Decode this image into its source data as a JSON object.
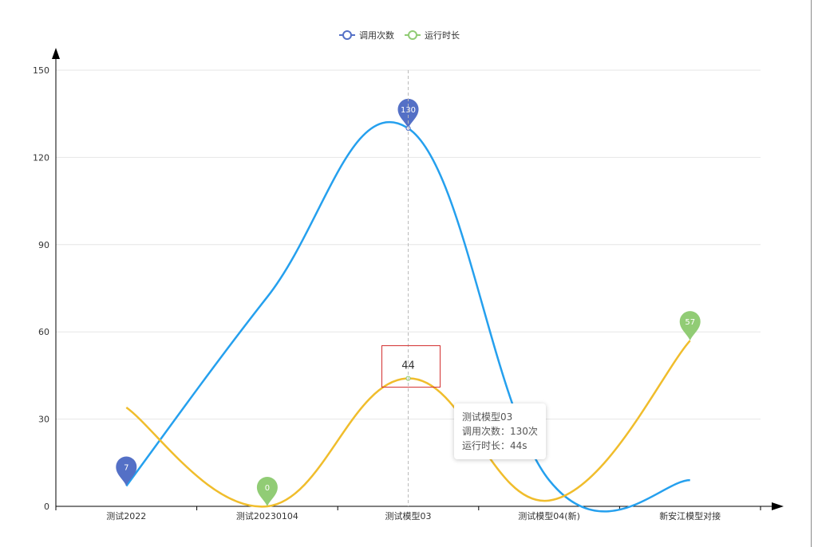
{
  "chart_data": {
    "type": "line",
    "categories": [
      "测试2022",
      "测试20230104",
      "测试模型03",
      "测试模型04(新)",
      "新安江模型对接"
    ],
    "series": [
      {
        "name": "调用次数",
        "values": [
          7,
          72,
          130,
          9,
          9
        ],
        "color": "#25a0ee",
        "legend_color": "#5470c6",
        "marker_label_index": [
          0,
          2
        ],
        "marker_color": "#5470c6"
      },
      {
        "name": "运行时长",
        "values": [
          34,
          0,
          44,
          2,
          57
        ],
        "color": "#f0bd2c",
        "legend_color": "#91cc75",
        "marker_label_index": [
          1,
          4
        ],
        "marker_color": "#91cc75"
      }
    ],
    "ylim": [
      0,
      150
    ],
    "yticks": [
      0,
      30,
      60,
      90,
      120,
      150
    ],
    "grid": true,
    "legend_position": "top-center",
    "highlight": {
      "index": 2,
      "series": 1,
      "label": "44"
    }
  },
  "tooltip": {
    "title": "测试模型03",
    "line1": "调用次数：130次",
    "line2": "运行时长：44s"
  }
}
